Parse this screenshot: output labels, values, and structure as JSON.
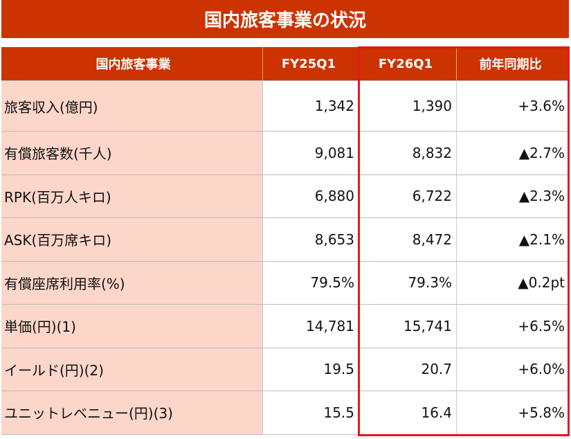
{
  "title": "国内旅客事業の状況",
  "table": {
    "header": [
      "国内旅客事業",
      "FY25Q1",
      "FY26Q1",
      "前年同期比"
    ],
    "rows": [
      [
        "旅客収入(億円)",
        "1,342",
        "1,390",
        "+3.6%"
      ],
      [
        "有償旅客数(千人)",
        "9,081",
        "8,832",
        "▲2.7%"
      ],
      [
        "RPK(百万人キロ)",
        "6,880",
        "6,722",
        "▲2.3%"
      ],
      [
        "ASK(百万席キロ)",
        "8,653",
        "8,472",
        "▲2.1%"
      ],
      [
        "有償座席利用率(%)",
        "79.5%",
        "79.3%",
        "▲0.2pt"
      ],
      [
        "単価(円)(1)",
        "14,781",
        "15,741",
        "+6.5%"
      ],
      [
        "イールド(円)(2)",
        "19.5",
        "20.7",
        "+6.0%"
      ],
      [
        "ユニットレベニュー(円)(3)",
        "15.5",
        "16.4",
        "+5.8%"
      ]
    ]
  }
}
